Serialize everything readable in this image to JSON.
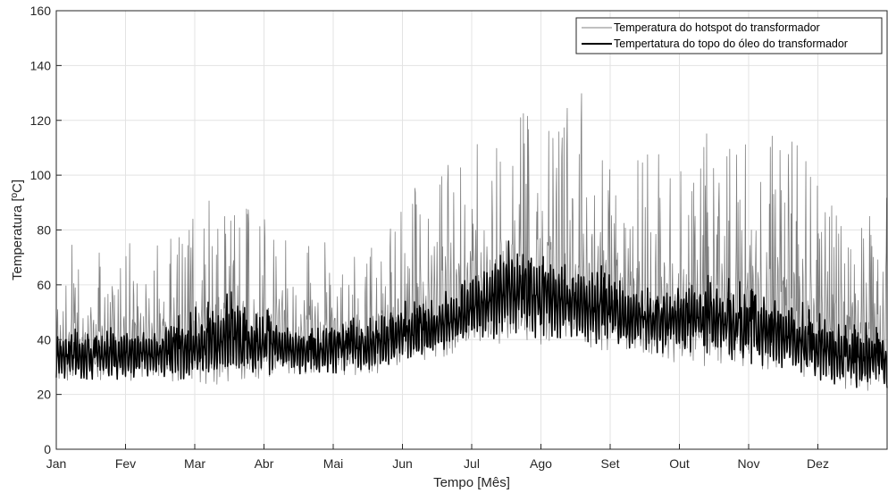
{
  "chart_data": {
    "type": "line",
    "title": "",
    "xlabel": "Tempo [Mês]",
    "ylabel": "Temperatura [ºC]",
    "ylim": [
      0,
      160
    ],
    "yticks": [
      0,
      20,
      40,
      60,
      80,
      100,
      120,
      140,
      160
    ],
    "grid": true,
    "legend_position": "top-right",
    "categories": [
      "Jan",
      "Fev",
      "Mar",
      "Abr",
      "Mai",
      "Jun",
      "Jul",
      "Ago",
      "Set",
      "Out",
      "Nov",
      "Dez"
    ],
    "series": [
      {
        "name": "Temperatura do hotspot do transformador",
        "color": "#808080",
        "envelope_months": [
          {
            "month": "Jan",
            "min": 25,
            "max": 76
          },
          {
            "month": "Fev",
            "min": 25,
            "max": 76
          },
          {
            "month": "Mar",
            "min": 23,
            "max": 100
          },
          {
            "month": "Abr",
            "min": 27,
            "max": 78
          },
          {
            "month": "Mai",
            "min": 27,
            "max": 72
          },
          {
            "month": "Jun",
            "min": 33,
            "max": 108
          },
          {
            "month": "Jul",
            "min": 38,
            "max": 122
          },
          {
            "month": "Ago",
            "min": 37,
            "max": 133
          },
          {
            "month": "Set",
            "min": 33,
            "max": 108
          },
          {
            "month": "Out",
            "min": 30,
            "max": 117
          },
          {
            "month": "Nov",
            "min": 28,
            "max": 116
          },
          {
            "month": "Dez",
            "min": 21,
            "max": 94
          }
        ]
      },
      {
        "name": "Tempertatura do topo do óleo do transformador",
        "color": "#000000",
        "envelope_months": [
          {
            "month": "Jan",
            "min": 22,
            "max": 45
          },
          {
            "month": "Fev",
            "min": 22,
            "max": 46
          },
          {
            "month": "Mar",
            "min": 20,
            "max": 58
          },
          {
            "month": "Abr",
            "min": 24,
            "max": 46
          },
          {
            "month": "Mai",
            "min": 24,
            "max": 50
          },
          {
            "month": "Jun",
            "min": 30,
            "max": 58
          },
          {
            "month": "Jul",
            "min": 35,
            "max": 77
          },
          {
            "month": "Ago",
            "min": 34,
            "max": 70
          },
          {
            "month": "Set",
            "min": 31,
            "max": 62
          },
          {
            "month": "Out",
            "min": 28,
            "max": 64
          },
          {
            "month": "Nov",
            "min": 24,
            "max": 57
          },
          {
            "month": "Dez",
            "min": 17,
            "max": 47
          }
        ]
      }
    ]
  }
}
